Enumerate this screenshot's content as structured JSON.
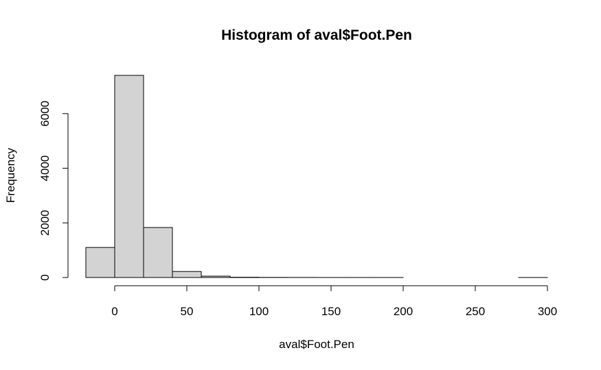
{
  "chart_data": {
    "type": "bar",
    "histogram": true,
    "title": "Histogram of aval$Foot.Pen",
    "xlabel": "aval$Foot.Pen",
    "ylabel": "Frequency",
    "bin_edges": [
      -20,
      0,
      20,
      40,
      60,
      80,
      100,
      120,
      140,
      160,
      180,
      200,
      220,
      240,
      260,
      280,
      300
    ],
    "values": [
      1100,
      7400,
      1830,
      220,
      50,
      10,
      4,
      2,
      1,
      1,
      1,
      0,
      0,
      0,
      0,
      1
    ],
    "xlim": [
      -20,
      300
    ],
    "ylim": [
      0,
      7400
    ],
    "x_ticks": [
      0,
      50,
      100,
      150,
      200,
      250,
      300
    ],
    "y_ticks": [
      0,
      2000,
      4000,
      6000
    ],
    "bar_fill": "#d3d3d3",
    "bar_stroke": "#000000",
    "grid": false,
    "legend": "none"
  }
}
